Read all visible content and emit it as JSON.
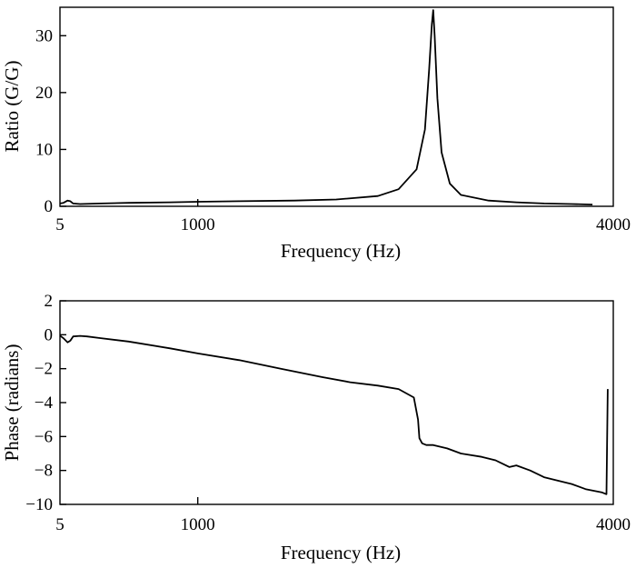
{
  "chart_data": [
    {
      "type": "line",
      "xlabel": "Frequency (Hz)",
      "ylabel": "Ratio (G/G)",
      "xlim": [
        5,
        4000
      ],
      "ylim": [
        0,
        35
      ],
      "xticks": [
        "5",
        "1000",
        "4000"
      ],
      "yticks": [
        "0",
        "10",
        "20",
        "30"
      ],
      "x": [
        5,
        30,
        60,
        80,
        100,
        150,
        300,
        500,
        800,
        1000,
        1300,
        1700,
        2000,
        2300,
        2450,
        2580,
        2640,
        2670,
        2690,
        2700,
        2710,
        2730,
        2760,
        2820,
        2900,
        3100,
        3300,
        3500,
        3700,
        3850
      ],
      "series": [
        {
          "values": [
            0.5,
            0.6,
            1.0,
            0.9,
            0.5,
            0.4,
            0.5,
            0.6,
            0.7,
            0.8,
            0.9,
            1.0,
            1.2,
            1.8,
            3.0,
            6.5,
            13.5,
            24.0,
            32.0,
            34.5,
            30.0,
            19.0,
            9.5,
            4.0,
            2.0,
            1.0,
            0.7,
            0.5,
            0.4,
            0.3
          ]
        }
      ],
      "grid": false
    },
    {
      "type": "line",
      "xlabel": "Frequency (Hz)",
      "ylabel": "Phase (radians)",
      "xlim": [
        5,
        4000
      ],
      "ylim": [
        -10,
        2
      ],
      "xticks": [
        "5",
        "1000",
        "4000"
      ],
      "yticks": [
        "2",
        "0",
        "−2",
        "−4",
        "−6",
        "−8",
        "−10"
      ],
      "x": [
        5,
        30,
        60,
        80,
        100,
        150,
        200,
        300,
        500,
        800,
        1000,
        1300,
        1600,
        1900,
        2100,
        2300,
        2450,
        2560,
        2590,
        2600,
        2620,
        2650,
        2700,
        2800,
        2900,
        3050,
        3150,
        3250,
        3300,
        3400,
        3500,
        3600,
        3700,
        3800,
        3920,
        3950,
        3951,
        3960
      ],
      "series": [
        {
          "values": [
            -0.05,
            -0.2,
            -0.45,
            -0.35,
            -0.1,
            -0.07,
            -0.1,
            -0.2,
            -0.4,
            -0.8,
            -1.1,
            -1.5,
            -2.0,
            -2.5,
            -2.8,
            -3.0,
            -3.2,
            -3.7,
            -5.0,
            -6.1,
            -6.4,
            -6.5,
            -6.5,
            -6.7,
            -7.0,
            -7.2,
            -7.4,
            -7.8,
            -7.7,
            -8.0,
            -8.4,
            -8.6,
            -8.8,
            -9.1,
            -9.3,
            -9.4,
            -9.4,
            -3.2
          ]
        }
      ],
      "grid": false
    }
  ]
}
